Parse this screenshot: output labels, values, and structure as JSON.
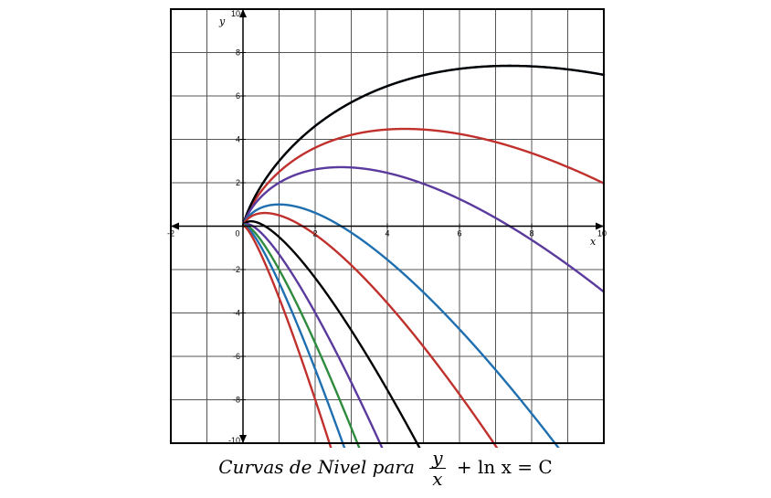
{
  "chart_data": {
    "type": "line",
    "title": "Curvas de Nivel para",
    "formula": {
      "numerator": "y",
      "denominator": "x",
      "rest": "+ ln x = C"
    },
    "xlabel": "x",
    "ylabel": "y",
    "xlim": [
      -2,
      10
    ],
    "ylim": [
      -10,
      10
    ],
    "x_ticks": [
      "-2",
      "0",
      "2",
      "4",
      "6",
      "8",
      "10"
    ],
    "y_ticks": [
      "-10",
      "-8",
      "-6",
      "-4",
      "-2",
      "2",
      "4",
      "6",
      "8",
      "10"
    ],
    "grid": true,
    "equation_form": "y = x (C - ln x)",
    "series": [
      {
        "C": 3.0,
        "color": "#1f5fa8"
      },
      {
        "C": 2.5,
        "color": "#c0302c"
      },
      {
        "C": 3.0,
        "color": "#000000",
        "domain": [
          0,
          10
        ]
      },
      {
        "C": 2.0,
        "color": "#5b3a9e"
      },
      {
        "C": 1.0,
        "color": "#1f6fb0"
      },
      {
        "C": 0.5,
        "color": "#c0302c"
      },
      {
        "C": -0.5,
        "color": "#000000"
      },
      {
        "C": -1.3,
        "color": "#5b3a9e"
      },
      {
        "C": -2.0,
        "color": "#2e8b3d"
      },
      {
        "C": -2.6,
        "color": "#1f6fb0"
      },
      {
        "C": -3.3,
        "color": "#c0302c"
      }
    ]
  }
}
